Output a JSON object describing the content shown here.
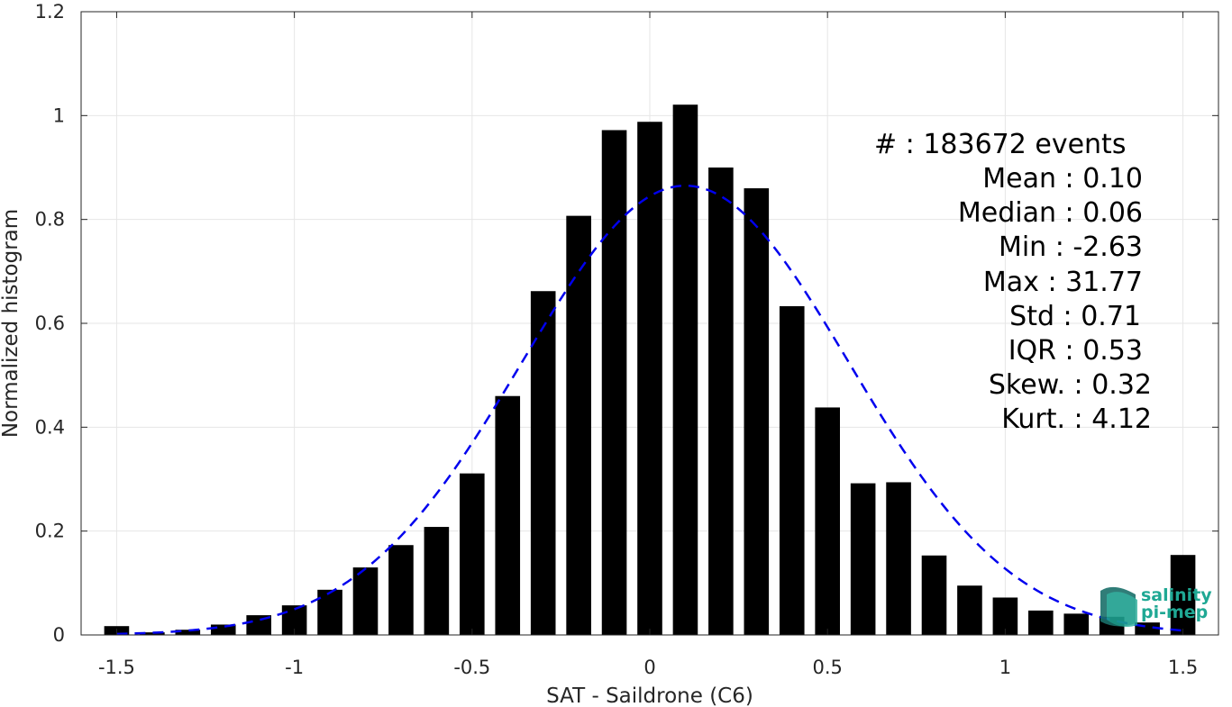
{
  "chart_data": {
    "type": "bar",
    "xlabel": "SAT - Saildrone (C6)",
    "ylabel": "Normalized histogram",
    "xlim": [
      -1.6,
      1.6
    ],
    "ylim": [
      0,
      1.2
    ],
    "xticks": [
      -1.5,
      -1,
      -0.5,
      0,
      0.5,
      1,
      1.5
    ],
    "xtick_labels": [
      "-1.5",
      "-1",
      "-0.5",
      "0",
      "0.5",
      "1",
      "1.5"
    ],
    "yticks": [
      0,
      0.2,
      0.4,
      0.6,
      0.8,
      1,
      1.2
    ],
    "ytick_labels": [
      "0",
      "0.2",
      "0.4",
      "0.6",
      "0.8",
      "1",
      "1.2"
    ],
    "grid": true,
    "bar_color": "#000000",
    "x": [
      -1.5,
      -1.4,
      -1.3,
      -1.2,
      -1.1,
      -1.0,
      -0.9,
      -0.8,
      -0.7,
      -0.6,
      -0.5,
      -0.4,
      -0.3,
      -0.2,
      -0.1,
      0.0,
      0.1,
      0.2,
      0.3,
      0.4,
      0.5,
      0.6,
      0.7,
      0.8,
      0.9,
      1.0,
      1.1,
      1.2,
      1.3,
      1.4,
      1.5
    ],
    "values": [
      0.017,
      0.005,
      0.01,
      0.02,
      0.038,
      0.057,
      0.087,
      0.13,
      0.173,
      0.208,
      0.311,
      0.46,
      0.662,
      0.807,
      0.972,
      0.988,
      1.021,
      0.9,
      0.86,
      0.633,
      0.438,
      0.292,
      0.294,
      0.153,
      0.095,
      0.072,
      0.047,
      0.041,
      0.035,
      0.024,
      0.154
    ],
    "fit": {
      "type": "gaussian",
      "color": "#0000ee",
      "style": "dashed",
      "mean": 0.1,
      "std": 0.46,
      "peak": 0.865
    },
    "annotations": [
      "#  : 183672 events",
      "Mean : 0.10",
      "Median : 0.06",
      "Min : -2.63",
      "Max : 31.77",
      "Std : 0.71",
      "IQR : 0.53",
      "Skew. : 0.32",
      "Kurt. : 4.12"
    ]
  },
  "logo": {
    "line1": "salinity",
    "line2": "pi-mep",
    "color": "#1fa894"
  }
}
